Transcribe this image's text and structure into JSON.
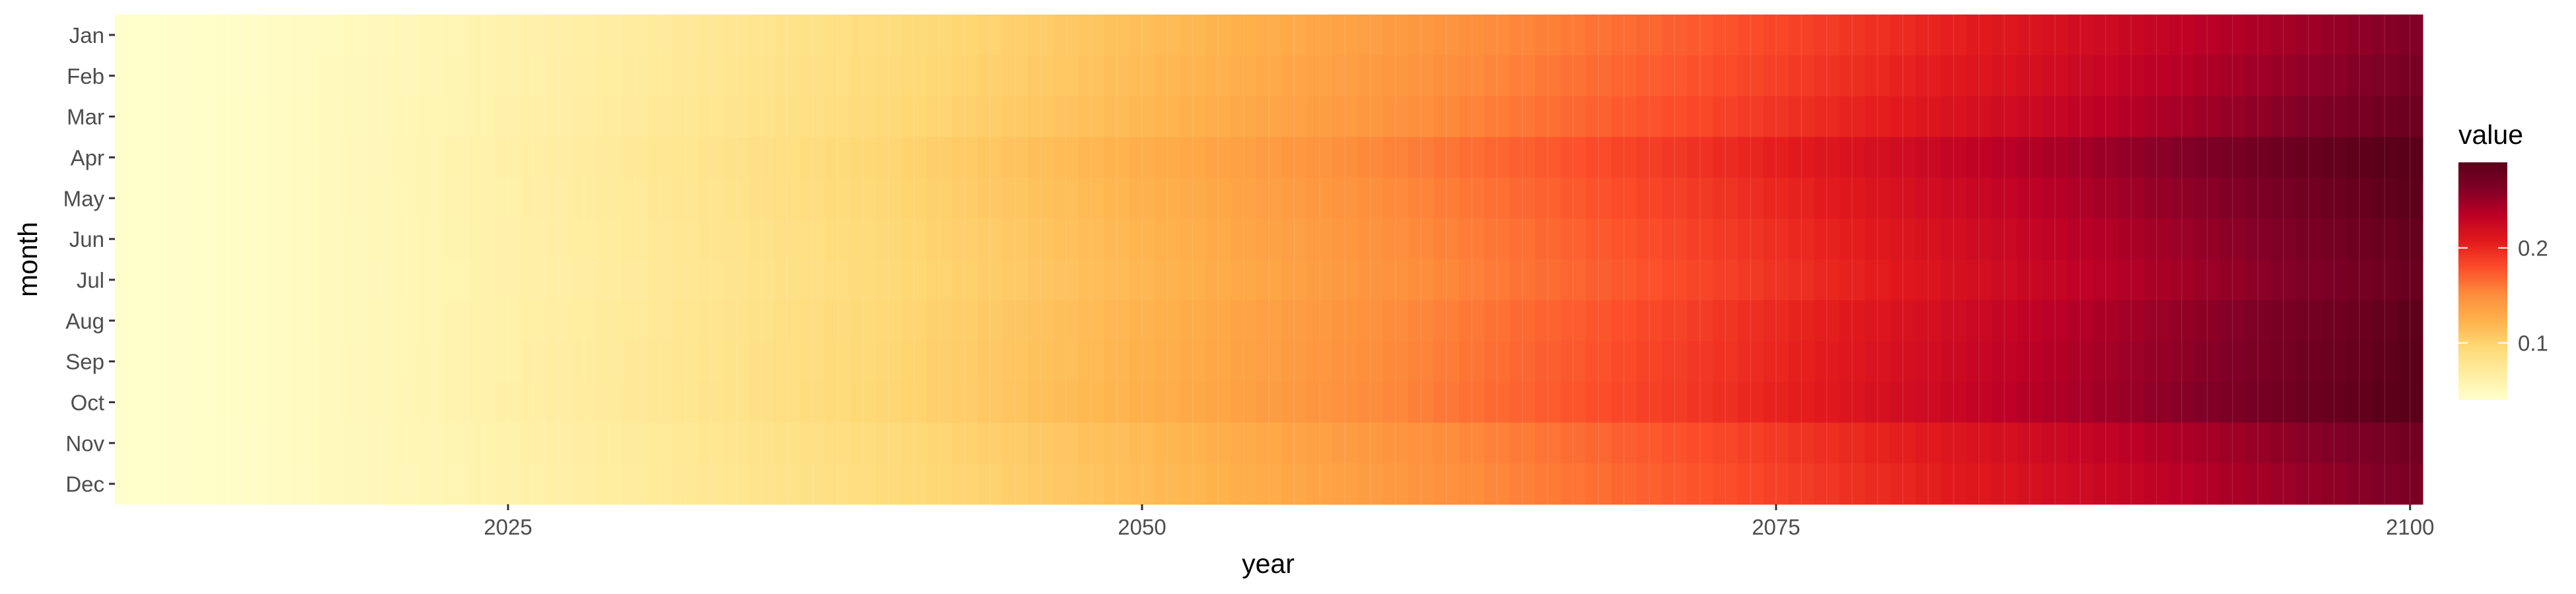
{
  "chart_data": {
    "type": "heatmap",
    "xlabel": "year",
    "ylabel": "month",
    "x_range": [
      2010,
      2100
    ],
    "x_ticks": [
      2025,
      2050,
      2075,
      2100
    ],
    "months": [
      "Jan",
      "Feb",
      "Mar",
      "Apr",
      "May",
      "Jun",
      "Jul",
      "Aug",
      "Sep",
      "Oct",
      "Nov",
      "Dec"
    ],
    "value_range": [
      0.04,
      0.29
    ],
    "legend": {
      "title": "value",
      "ticks": [
        0.1,
        0.2
      ],
      "placement": "right"
    },
    "colorscale": [
      "#ffffcc",
      "#ffeda0",
      "#fed976",
      "#feb24c",
      "#fd8d3c",
      "#fc4e2a",
      "#e31a1c",
      "#bd0026",
      "#800026",
      "#5a0019"
    ],
    "end_values_2100": [
      0.262,
      0.268,
      0.276,
      0.295,
      0.288,
      0.282,
      0.278,
      0.286,
      0.289,
      0.292,
      0.272,
      0.266
    ],
    "start_value": 0.04,
    "curve_exponent": 1.35,
    "grid": true
  }
}
